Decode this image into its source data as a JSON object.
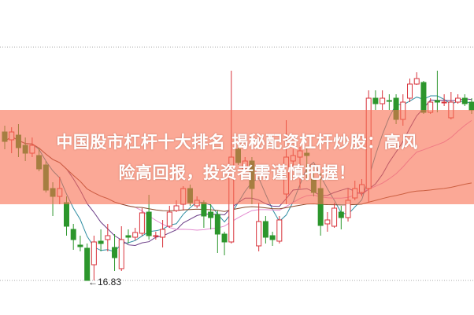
{
  "headline": {
    "line1": "中国股市杠杆十大排名 揭秘配资杠杆炒股：高风",
    "line2": "险高回报，投资者需谨慎把握！"
  },
  "chart_data": {
    "type": "candlestick",
    "ylim": [
      16.83,
      22.77
    ],
    "grid": "dotted top and bottom lines",
    "annotations": [
      {
        "text": "←16.83",
        "value": 16.83
      }
    ],
    "colors": {
      "up": "#d8333b",
      "down": "#2c962c",
      "ma5": "#2f8ea3",
      "ma10": "#6b3d87",
      "ma20": "#e38bd0",
      "ma60": "#8a4a2c",
      "banner": "#f86e50"
    },
    "moving_average_periods": [
      5,
      10,
      20,
      60
    ],
    "candles_ochl": [
      [
        20.61,
        20.37,
        20.77,
        20.17
      ],
      [
        20.41,
        20.61,
        20.73,
        20.07
      ],
      [
        20.53,
        20.21,
        20.81,
        19.97
      ],
      [
        20.27,
        20.07,
        20.47,
        19.87
      ],
      [
        20.07,
        20.27,
        20.47,
        19.97
      ],
      [
        20.01,
        19.67,
        20.21,
        19.61
      ],
      [
        19.77,
        19.13,
        19.87,
        19.07
      ],
      [
        19.17,
        18.97,
        19.33,
        18.47
      ],
      [
        18.97,
        19.17,
        19.47,
        18.77
      ],
      [
        18.81,
        18.21,
        18.97,
        17.97
      ],
      [
        18.13,
        17.87,
        18.27,
        17.61
      ],
      [
        17.73,
        17.69,
        17.97,
        17.57
      ],
      [
        17.65,
        16.83,
        17.77,
        16.83
      ],
      [
        17.23,
        17.81,
        17.97,
        16.83
      ],
      [
        17.83,
        17.77,
        18.13,
        17.57
      ],
      [
        17.87,
        17.97,
        18.27,
        17.57
      ],
      [
        17.67,
        17.41,
        18.01,
        17.07
      ],
      [
        17.13,
        17.87,
        18.21,
        17.07
      ],
      [
        17.97,
        17.93,
        18.13,
        17.77
      ],
      [
        17.93,
        18.05,
        18.17,
        17.85
      ],
      [
        18.03,
        18.55,
        18.67,
        17.97
      ],
      [
        18.57,
        17.97,
        19.01,
        17.87
      ],
      [
        17.95,
        17.97,
        18.07,
        17.87
      ],
      [
        17.93,
        18.13,
        18.37,
        17.67
      ],
      [
        18.21,
        18.57,
        18.73,
        18.17
      ],
      [
        18.61,
        18.73,
        18.87,
        18.57
      ],
      [
        18.77,
        19.17,
        19.23,
        18.61
      ],
      [
        19.17,
        18.81,
        19.27,
        18.73
      ],
      [
        18.73,
        18.87,
        18.97,
        18.67
      ],
      [
        18.81,
        18.47,
        18.87,
        18.17
      ],
      [
        18.57,
        18.43,
        18.77,
        18.13
      ],
      [
        18.51,
        18.01,
        18.61,
        17.53
      ],
      [
        18.01,
        17.81,
        18.07,
        17.47
      ],
      [
        17.81,
        19.97,
        22.17,
        17.77
      ],
      [
        20.17,
        19.83,
        20.27,
        19.77
      ],
      [
        19.67,
        19.87,
        19.97,
        19.57
      ],
      [
        19.87,
        19.17,
        19.97,
        18.77
      ],
      [
        17.71,
        18.33,
        18.81,
        17.57
      ],
      [
        18.33,
        17.93,
        18.47,
        17.77
      ],
      [
        17.97,
        17.87,
        18.07,
        17.71
      ],
      [
        17.83,
        18.37,
        18.47,
        17.77
      ],
      [
        19.03,
        19.97,
        20.91,
        18.77
      ],
      [
        19.87,
        20.01,
        20.17,
        19.67
      ],
      [
        19.97,
        20.13,
        20.23,
        19.17
      ],
      [
        20.07,
        20.01,
        20.21,
        19.37
      ],
      [
        19.41,
        19.07,
        19.57,
        18.97
      ],
      [
        19.17,
        18.23,
        19.57,
        17.97
      ],
      [
        18.27,
        18.37,
        18.57,
        18.07
      ],
      [
        18.21,
        18.67,
        18.81,
        18.17
      ],
      [
        18.57,
        18.43,
        18.73,
        18.13
      ],
      [
        18.43,
        18.87,
        19.17,
        18.33
      ],
      [
        18.93,
        19.17,
        19.37,
        18.87
      ],
      [
        19.07,
        19.27,
        19.41,
        18.97
      ],
      [
        19.17,
        21.47,
        21.67,
        18.81
      ],
      [
        21.47,
        21.33,
        21.67,
        21.17
      ],
      [
        21.33,
        21.47,
        21.67,
        21.17
      ],
      [
        21.41,
        21.39,
        21.57,
        21.17
      ],
      [
        21.47,
        20.93,
        21.57,
        20.81
      ],
      [
        20.93,
        21.37,
        21.57,
        20.77
      ],
      [
        21.47,
        21.83,
        21.97,
        21.37
      ],
      [
        21.83,
        21.97,
        22.13,
        21.81
      ],
      [
        21.87,
        21.11,
        21.91,
        21.07
      ],
      [
        21.11,
        21.37,
        21.47,
        21.07
      ],
      [
        21.41,
        21.37,
        22.17,
        21.11
      ],
      [
        21.37,
        21.37,
        21.57,
        21.27
      ],
      [
        20.97,
        21.37,
        21.63,
        20.93
      ],
      [
        21.37,
        21.47,
        21.57,
        21.33
      ],
      [
        21.47,
        21.33,
        21.57,
        21.27
      ],
      [
        21.37,
        21.17,
        21.47,
        21.07
      ]
    ]
  }
}
